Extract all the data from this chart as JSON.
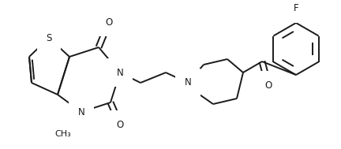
{
  "bg_color": "#ffffff",
  "line_color": "#1a1a1a",
  "line_width": 1.4,
  "font_size": 8.5,
  "figsize": [
    4.32,
    1.89
  ],
  "dpi": 100,
  "xlim": [
    0,
    432
  ],
  "ylim": [
    0,
    189
  ]
}
